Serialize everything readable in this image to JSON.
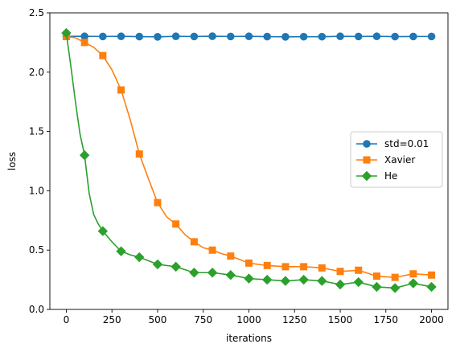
{
  "chart_data": {
    "type": "line",
    "xlabel": "iterations",
    "ylabel": "loss",
    "xlim": [
      -90,
      2090
    ],
    "ylim": [
      0,
      2.5
    ],
    "xticks": [
      0,
      250,
      500,
      750,
      1000,
      1250,
      1500,
      1750,
      2000
    ],
    "xtick_labels": [
      "0",
      "250",
      "500",
      "750",
      "1000",
      "1250",
      "1500",
      "1750",
      "2000"
    ],
    "yticks": [
      0.0,
      0.5,
      1.0,
      1.5,
      2.0,
      2.5
    ],
    "ytick_labels": [
      "0.0",
      "0.5",
      "1.0",
      "1.5",
      "2.0",
      "2.5"
    ],
    "grid": false,
    "legend_position": "center-right",
    "series": [
      {
        "name": "std=0.01",
        "color": "#1f77b4",
        "marker": "circle",
        "x": [
          0,
          100,
          200,
          300,
          400,
          500,
          600,
          700,
          800,
          900,
          1000,
          1100,
          1200,
          1300,
          1400,
          1500,
          1600,
          1700,
          1800,
          1900,
          2000
        ],
        "values": [
          2.302,
          2.302,
          2.301,
          2.302,
          2.3,
          2.298,
          2.302,
          2.301,
          2.303,
          2.301,
          2.302,
          2.3,
          2.298,
          2.299,
          2.299,
          2.302,
          2.301,
          2.302,
          2.3,
          2.301,
          2.301
        ]
      },
      {
        "name": "Xavier",
        "color": "#ff7f0e",
        "marker": "square",
        "x": [
          0,
          50,
          100,
          150,
          200,
          250,
          300,
          350,
          400,
          450,
          500,
          550,
          600,
          650,
          700,
          750,
          800,
          850,
          900,
          950,
          1000,
          1100,
          1200,
          1300,
          1400,
          1500,
          1600,
          1700,
          1800,
          1900,
          2000
        ],
        "values": [
          2.3,
          2.29,
          2.25,
          2.21,
          2.14,
          2.02,
          1.85,
          1.6,
          1.31,
          1.1,
          0.9,
          0.78,
          0.72,
          0.63,
          0.57,
          0.52,
          0.5,
          0.47,
          0.45,
          0.42,
          0.39,
          0.37,
          0.36,
          0.36,
          0.35,
          0.32,
          0.33,
          0.28,
          0.27,
          0.3,
          0.29
        ]
      },
      {
        "name": "He",
        "color": "#2ca02c",
        "marker": "diamond",
        "x": [
          0,
          25,
          50,
          75,
          100,
          125,
          150,
          175,
          200,
          250,
          300,
          350,
          400,
          450,
          500,
          600,
          700,
          800,
          900,
          1000,
          1100,
          1200,
          1300,
          1400,
          1500,
          1600,
          1700,
          1800,
          1900,
          2000
        ],
        "values": [
          2.33,
          2.05,
          1.75,
          1.48,
          1.3,
          0.98,
          0.8,
          0.72,
          0.66,
          0.57,
          0.49,
          0.46,
          0.44,
          0.41,
          0.38,
          0.36,
          0.31,
          0.31,
          0.29,
          0.26,
          0.25,
          0.24,
          0.25,
          0.24,
          0.21,
          0.23,
          0.19,
          0.18,
          0.22,
          0.19
        ]
      }
    ]
  }
}
